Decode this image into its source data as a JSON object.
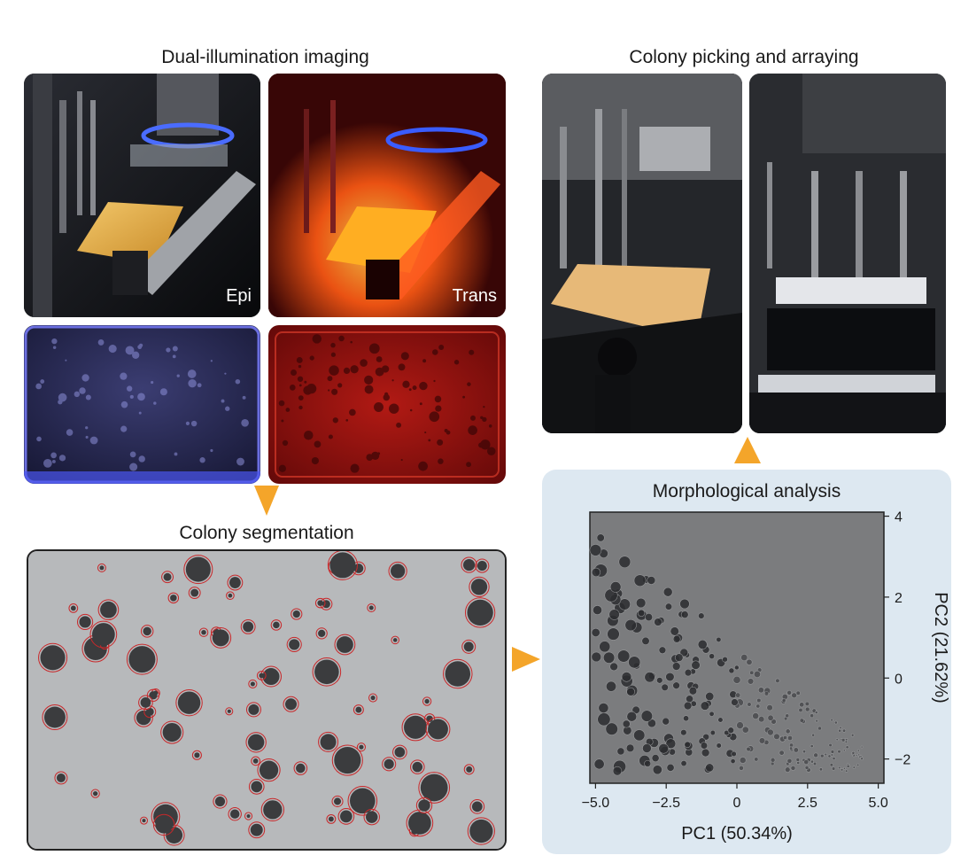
{
  "sections": {
    "dual_illumination": {
      "title": "Dual-illumination imaging",
      "epi_label": "Epi",
      "trans_label": "Trans"
    },
    "colony_picking": {
      "title": "Colony picking and arraying"
    },
    "segmentation": {
      "title": "Colony segmentation"
    },
    "morphological": {
      "title": "Morphological analysis"
    }
  },
  "colors": {
    "arrow": "#f4a52a",
    "segmentation_outline": "#c8282a",
    "analysis_background": "#dde8f1",
    "epi_plate": "#1b1c4a",
    "trans_plate": "#8c1010"
  },
  "chart_data": {
    "type": "scatter",
    "title": "Morphological analysis",
    "xlabel": "PC1 (50.34%)",
    "ylabel": "PC2 (21.62%)",
    "xlim": [
      -5.2,
      5.2
    ],
    "ylim": [
      -2.6,
      4.1
    ],
    "xticks": [
      -5.0,
      -2.5,
      0,
      2.5,
      5.0
    ],
    "xtick_labels": [
      "−5.0",
      "−2.5",
      "0",
      "2.5",
      "5.0"
    ],
    "yticks": [
      4,
      2,
      0,
      -2
    ],
    "ytick_labels": [
      "4",
      "2",
      "0",
      "−2"
    ],
    "y_axis_side": "right",
    "grid": false,
    "point_style": "colony thumbnail images"
  }
}
